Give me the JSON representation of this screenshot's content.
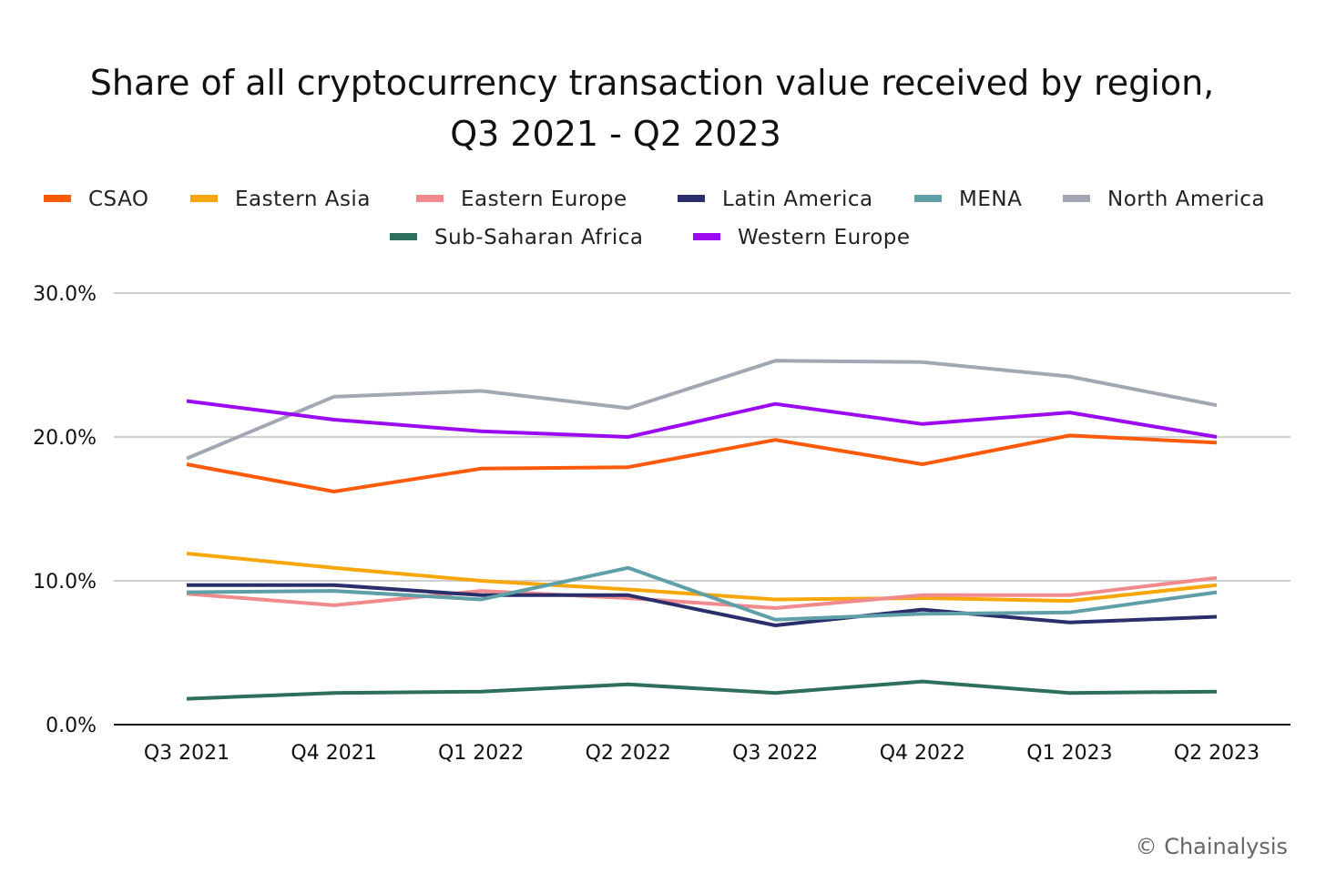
{
  "chart_data": {
    "type": "line",
    "title": [
      "Share of all cryptocurrency transaction value received by region,",
      "Q3 2021 - Q2 2023"
    ],
    "xlabel": "",
    "ylabel": "",
    "categories": [
      "Q3 2021",
      "Q4 2021",
      "Q1 2022",
      "Q2 2022",
      "Q3 2022",
      "Q4 2022",
      "Q1 2023",
      "Q2 2023"
    ],
    "ylim": [
      0,
      30
    ],
    "yticks": [
      0,
      10,
      20,
      30
    ],
    "ytick_labels": [
      "0.0%",
      "10.0%",
      "20.0%",
      "30.0%"
    ],
    "grid": true,
    "legend_position": "top",
    "series": [
      {
        "name": "CSAO",
        "color": "#FF5A0A",
        "values": [
          18.1,
          16.2,
          17.8,
          17.9,
          19.8,
          18.1,
          20.1,
          19.6
        ]
      },
      {
        "name": "Eastern Asia",
        "color": "#F7A70A",
        "values": [
          11.9,
          10.9,
          10.0,
          9.4,
          8.7,
          8.8,
          8.6,
          9.7
        ]
      },
      {
        "name": "Eastern Europe",
        "color": "#F08A8C",
        "values": [
          9.1,
          8.3,
          9.3,
          8.8,
          8.1,
          9.0,
          9.0,
          10.2
        ]
      },
      {
        "name": "Latin America",
        "color": "#2A2F6B",
        "values": [
          9.7,
          9.7,
          9.0,
          9.0,
          6.9,
          8.0,
          7.1,
          7.5
        ]
      },
      {
        "name": "MENA",
        "color": "#5E9FA8",
        "values": [
          9.2,
          9.3,
          8.7,
          10.9,
          7.3,
          7.7,
          7.8,
          9.2
        ]
      },
      {
        "name": "North America",
        "color": "#A1A8B3",
        "values": [
          18.5,
          22.8,
          23.2,
          22.0,
          25.3,
          25.2,
          24.2,
          22.2
        ]
      },
      {
        "name": "Sub-Saharan Africa",
        "color": "#2E6E5E",
        "values": [
          1.8,
          2.2,
          2.3,
          2.8,
          2.2,
          3.0,
          2.2,
          2.3
        ]
      },
      {
        "name": "Western Europe",
        "color": "#9B0AF0",
        "values": [
          22.5,
          21.2,
          20.4,
          20.0,
          22.3,
          20.9,
          21.7,
          20.0
        ]
      }
    ]
  },
  "source_credit": "© Chainalysis"
}
